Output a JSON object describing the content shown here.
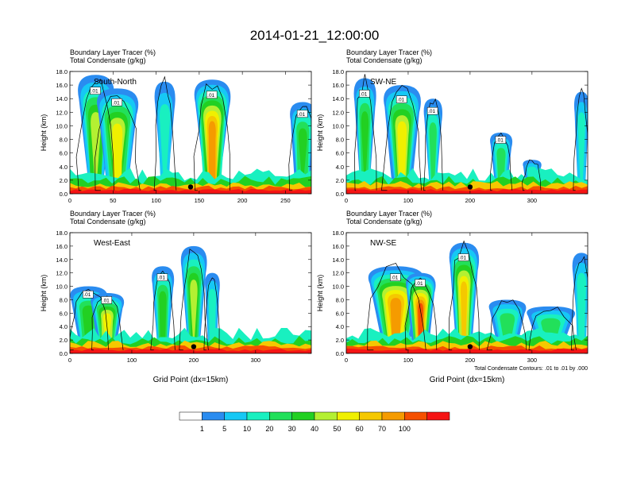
{
  "figure": {
    "title": "2014-01-21_12:00:00",
    "condensate_note": "Total Condensate Contours: .01 to .01 by .000"
  },
  "colorbar": {
    "labels": [
      "1",
      "5",
      "10",
      "20",
      "30",
      "40",
      "50",
      "60",
      "70",
      "100"
    ],
    "colors": [
      "#ffffff",
      "#2a8cf0",
      "#16c8f5",
      "#19f0c0",
      "#22e05a",
      "#22d022",
      "#b4f032",
      "#f0f000",
      "#f5c800",
      "#f59b00",
      "#f55000",
      "#f51414"
    ]
  },
  "chart_data": [
    {
      "type": "heatmap",
      "name": "South-North",
      "title_lines": [
        "Boundary Layer Tracer   (%)",
        "Total Condensate   (g/kg)"
      ],
      "ylabel": "Height (km)",
      "xlabel": "",
      "xlim": [
        0,
        280
      ],
      "ylim": [
        0,
        18
      ],
      "xticks": [
        "0",
        "50",
        "100",
        "150",
        "200",
        "250"
      ],
      "yticks": [
        "0.0",
        "2.0",
        "4.0",
        "6.0",
        "8.0",
        "10.0",
        "12.0",
        "14.0",
        "16.0",
        "18.0"
      ],
      "contour_labels": [
        ".01",
        ".01",
        ".01",
        ".01"
      ],
      "marker": {
        "x": 140,
        "y": 1.0
      }
    },
    {
      "type": "heatmap",
      "name": "SW-NE",
      "title_lines": [
        "Boundary Layer Tracer   (%)",
        "Total Condensate   (g/kg)"
      ],
      "ylabel": "Height (km)",
      "xlabel": "",
      "xlim": [
        0,
        390
      ],
      "ylim": [
        0,
        18
      ],
      "xticks": [
        "0",
        "100",
        "200",
        "300"
      ],
      "yticks": [
        "0.0",
        "2.0",
        "4.0",
        "6.0",
        "8.0",
        "10.0",
        "12.0",
        "14.0",
        "16.0",
        "18.0"
      ],
      "contour_labels": [
        ".01",
        ".01",
        ".01",
        ".01"
      ],
      "marker": {
        "x": 200,
        "y": 1.0
      }
    },
    {
      "type": "heatmap",
      "name": "West-East",
      "title_lines": [
        "Boundary Layer Tracer   (%)",
        "Total Condensate   (g/kg)"
      ],
      "ylabel": "Height (km)",
      "xlabel": "Grid Point (dx=15km)",
      "xlim": [
        0,
        390
      ],
      "ylim": [
        0,
        18
      ],
      "xticks": [
        "0",
        "100",
        "200",
        "300"
      ],
      "yticks": [
        "0.0",
        "2.0",
        "4.0",
        "6.0",
        "8.0",
        "10.0",
        "12.0",
        "14.0",
        "16.0",
        "18.0"
      ],
      "contour_labels": [
        ".01",
        ".01",
        ".01"
      ],
      "marker": {
        "x": 200,
        "y": 1.0
      }
    },
    {
      "type": "heatmap",
      "name": "NW-SE",
      "title_lines": [
        "Boundary Layer Tracer   (%)",
        "Total Condensate   (g/kg)"
      ],
      "ylabel": "Height (km)",
      "xlabel": "Grid Point (dx=15km)",
      "xlim": [
        0,
        390
      ],
      "ylim": [
        0,
        18
      ],
      "xticks": [
        "0",
        "100",
        "200",
        "300"
      ],
      "yticks": [
        "0.0",
        "2.0",
        "4.0",
        "6.0",
        "8.0",
        "10.0",
        "12.0",
        "14.0",
        "16.0",
        "18.0"
      ],
      "contour_labels": [
        ".01",
        ".01",
        ".01"
      ],
      "marker": {
        "x": 200,
        "y": 1.0
      }
    }
  ]
}
